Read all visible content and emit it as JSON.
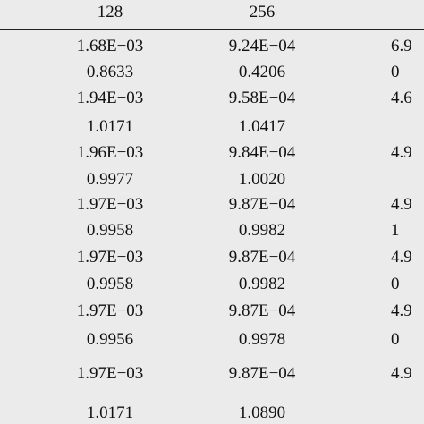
{
  "table": {
    "header": [
      "128",
      "256"
    ],
    "rows": [
      [
        "1.68E−03",
        "9.24E−04",
        "6.9"
      ],
      [
        "0.8633",
        "0.4206",
        "0"
      ],
      [
        "1.94E−03",
        "9.58E−04",
        "4.6"
      ],
      [
        "1.0171",
        "1.0417"
      ],
      [
        "1.96E−03",
        "9.84E−04",
        "4.9"
      ],
      [
        "0.9977",
        "1.0020"
      ],
      [
        "1.97E−03",
        "9.87E−04",
        "4.9"
      ],
      [
        "0.9958",
        "0.9982",
        "1"
      ],
      [
        "1.97E−03",
        "9.87E−04",
        "4.9"
      ],
      [
        "0.9958",
        "0.9982",
        "0"
      ],
      [
        "1.97E−03",
        "9.87E−04",
        "4.9"
      ],
      [
        "0.9956",
        "0.9978",
        "0"
      ],
      [
        "1.97E−03",
        "9.87E−04",
        "4.9"
      ],
      [
        "1.0171",
        "1.0890"
      ]
    ]
  }
}
